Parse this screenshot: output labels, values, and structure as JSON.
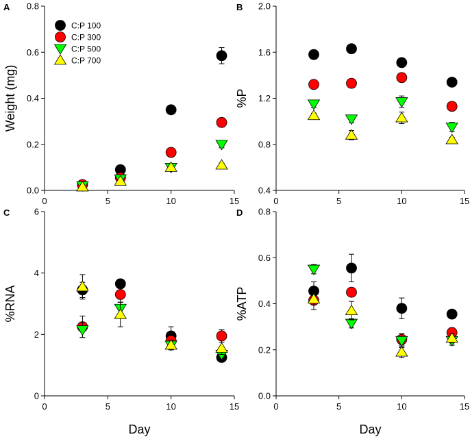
{
  "legend": [
    {
      "label": "C:P 100",
      "shape": "circle",
      "color": "#000000"
    },
    {
      "label": "C:P 300",
      "shape": "circle",
      "color": "#ff0000"
    },
    {
      "label": "C:P 500",
      "shape": "triangle-down",
      "color": "#00ff00"
    },
    {
      "label": "C:P 700",
      "shape": "triangle-up",
      "color": "#ffff00"
    }
  ],
  "chart_data": [
    {
      "panel": "A",
      "type": "scatter",
      "xlabel": "",
      "ylabel": "Weight (mg)",
      "xlim": [
        0,
        15
      ],
      "ylim": [
        0,
        0.8
      ],
      "xticks": [
        0,
        5,
        10,
        15
      ],
      "yticks": [
        0.0,
        0.2,
        0.4,
        0.6,
        0.8
      ],
      "ytick_labels": [
        "0.0",
        "0.2",
        "0.4",
        "0.6",
        "0.8"
      ],
      "show_xtick_labels": true,
      "x": [
        3,
        6,
        10,
        14
      ],
      "series": [
        {
          "name": "C:P 100",
          "values": [
            0.025,
            0.09,
            0.35,
            0.585
          ],
          "errors": [
            0.005,
            0.008,
            0.015,
            0.035
          ]
        },
        {
          "name": "C:P 300",
          "values": [
            0.025,
            0.055,
            0.165,
            0.295
          ],
          "errors": [
            0.003,
            0.005,
            0.01,
            0.02
          ]
        },
        {
          "name": "C:P 500",
          "values": [
            0.02,
            0.05,
            0.1,
            0.2
          ],
          "errors": [
            0.002,
            0.004,
            0.008,
            0.015
          ]
        },
        {
          "name": "C:P 700",
          "values": [
            0.015,
            0.04,
            0.1,
            0.11
          ],
          "errors": [
            0.002,
            0.003,
            0.006,
            0.008
          ]
        }
      ]
    },
    {
      "panel": "B",
      "type": "scatter",
      "xlabel": "",
      "ylabel": "%P",
      "xlim": [
        0,
        15
      ],
      "ylim": [
        0.4,
        2.0
      ],
      "xticks": [
        0,
        5,
        10,
        15
      ],
      "yticks": [
        0.4,
        0.8,
        1.2,
        1.6,
        2.0
      ],
      "ytick_labels": [
        "0.4",
        "0.8",
        "1.2",
        "1.6",
        "2.0"
      ],
      "show_xtick_labels": true,
      "x": [
        3,
        6,
        10,
        14
      ],
      "series": [
        {
          "name": "C:P 100",
          "values": [
            1.58,
            1.63,
            1.51,
            1.34
          ],
          "errors": [
            0.02,
            0.02,
            0.03,
            0.02
          ]
        },
        {
          "name": "C:P 300",
          "values": [
            1.32,
            1.33,
            1.38,
            1.13
          ],
          "errors": [
            0.03,
            0.02,
            0.04,
            0.02
          ]
        },
        {
          "name": "C:P 500",
          "values": [
            1.15,
            1.02,
            1.17,
            0.95
          ],
          "errors": [
            0.03,
            0.03,
            0.05,
            0.04
          ]
        },
        {
          "name": "C:P 700",
          "values": [
            1.05,
            0.88,
            1.03,
            0.84
          ],
          "errors": [
            0.02,
            0.04,
            0.05,
            0.02
          ]
        }
      ]
    },
    {
      "panel": "C",
      "type": "scatter",
      "xlabel": "Day",
      "ylabel": "%RNA",
      "xlim": [
        0,
        15
      ],
      "ylim": [
        0,
        6
      ],
      "xticks": [
        0,
        5,
        10,
        15
      ],
      "yticks": [
        0,
        2,
        4,
        6
      ],
      "ytick_labels": [
        "0",
        "2",
        "4",
        "6"
      ],
      "show_xtick_labels": true,
      "x": [
        3,
        6,
        10,
        14
      ],
      "series": [
        {
          "name": "C:P 100",
          "values": [
            3.45,
            3.65,
            1.95,
            1.25
          ],
          "errors": [
            0.25,
            0.15,
            0.3,
            0.1
          ]
        },
        {
          "name": "C:P 300",
          "values": [
            2.25,
            3.3,
            1.8,
            1.95
          ],
          "errors": [
            0.35,
            0.25,
            0.15,
            0.2
          ]
        },
        {
          "name": "C:P 500",
          "values": [
            2.15,
            2.85,
            1.65,
            1.35
          ],
          "errors": [
            0.25,
            0.2,
            0.15,
            0.1
          ]
        },
        {
          "name": "C:P 700",
          "values": [
            3.55,
            2.65,
            1.65,
            1.55
          ],
          "errors": [
            0.4,
            0.4,
            0.15,
            0.2
          ]
        }
      ]
    },
    {
      "panel": "D",
      "type": "scatter",
      "xlabel": "Day",
      "ylabel": "%ATP",
      "xlim": [
        0,
        15
      ],
      "ylim": [
        0,
        0.8
      ],
      "xticks": [
        0,
        5,
        10,
        15
      ],
      "yticks": [
        0.0,
        0.2,
        0.4,
        0.6,
        0.8
      ],
      "ytick_labels": [
        "0.0",
        "0.2",
        "0.4",
        "0.6",
        "0.8"
      ],
      "show_xtick_labels": true,
      "x": [
        3,
        6,
        10,
        14
      ],
      "series": [
        {
          "name": "C:P 100",
          "values": [
            0.455,
            0.555,
            0.38,
            0.355
          ],
          "errors": [
            0.04,
            0.06,
            0.045,
            0.015
          ]
        },
        {
          "name": "C:P 300",
          "values": [
            0.415,
            0.45,
            0.245,
            0.275
          ],
          "errors": [
            0.04,
            0.015,
            0.025,
            0.02
          ]
        },
        {
          "name": "C:P 500",
          "values": [
            0.55,
            0.315,
            0.24,
            0.24
          ],
          "errors": [
            0.02,
            0.02,
            0.03,
            0.02
          ]
        },
        {
          "name": "C:P 700",
          "values": [
            0.42,
            0.37,
            0.19,
            0.25
          ],
          "errors": [
            0.025,
            0.04,
            0.025,
            0.02
          ]
        }
      ]
    }
  ]
}
